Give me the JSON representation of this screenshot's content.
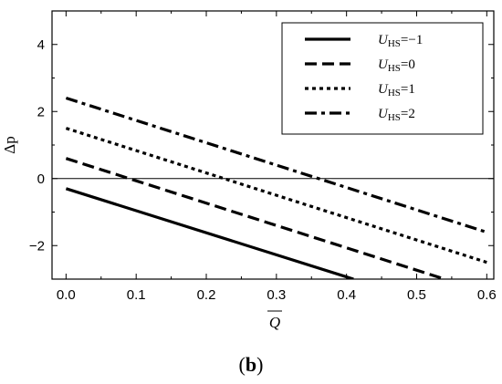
{
  "chart_data": {
    "type": "line",
    "xlabel": "Q",
    "ylabel": "Δp",
    "xlim": [
      -0.02,
      0.61
    ],
    "ylim": [
      -3,
      5
    ],
    "xticks": [
      "0.0",
      "0.1",
      "0.2",
      "0.3",
      "0.4",
      "0.5",
      "0.6"
    ],
    "yticks": [
      "−2",
      "0",
      "2",
      "4"
    ],
    "grid": false,
    "legend": "top-right",
    "reference_line_y": 0,
    "series": [
      {
        "name": "U",
        "subscript": "HS",
        "suffix": "=−1",
        "dash": "solid",
        "x": [
          0.0,
          0.41
        ],
        "y": [
          -0.3,
          -3.0
        ]
      },
      {
        "name": "U",
        "subscript": "HS",
        "suffix": "=0",
        "dash": "dashed",
        "x": [
          0.0,
          0.54
        ],
        "y": [
          0.6,
          -3.0
        ]
      },
      {
        "name": "U",
        "subscript": "HS",
        "suffix": "=1",
        "dash": "dotted",
        "x": [
          0.0,
          0.6
        ],
        "y": [
          1.5,
          -2.5
        ]
      },
      {
        "name": "U",
        "subscript": "HS",
        "suffix": "=2",
        "dash": "dashdot",
        "x": [
          0.0,
          0.6
        ],
        "y": [
          2.4,
          -1.6
        ]
      }
    ],
    "caption": "(b)"
  }
}
